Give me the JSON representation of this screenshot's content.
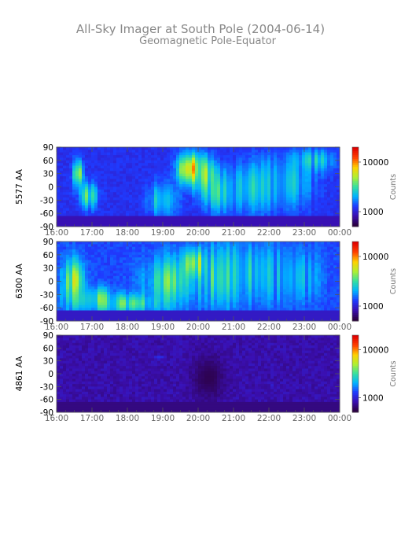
{
  "title": "All-Sky Imager at South Pole (2004-06-14)",
  "subtitle": "Geomagnetic Pole-Equator",
  "chart_data": [
    {
      "type": "heatmap",
      "panel": "5577",
      "ylabel": "5577 AA",
      "colorbar_label": "Counts",
      "colorbar_scale": "log",
      "colorbar_ticks": [
        1000,
        10000
      ],
      "colorbar_tick_labels": [
        "1000",
        "10000"
      ],
      "yticks": [
        90,
        60,
        30,
        0,
        -30,
        -60,
        -90
      ],
      "yticks_labels": [
        "90",
        "60",
        "30",
        "0",
        "-30",
        "-60",
        "-90"
      ],
      "ylim": [
        -90,
        90
      ],
      "xticks": [
        "16:00",
        "17:00",
        "18:00",
        "19:00",
        "20:00",
        "21:00",
        "22:00",
        "23:00",
        "00:00"
      ],
      "xlim": [
        "16:00",
        "00:00"
      ],
      "colormap": [
        "#2b003f",
        "#3a0fb0",
        "#1f3bff",
        "#00b3ff",
        "#35e0a0",
        "#b0f030",
        "#ffd000",
        "#ff4000",
        "#e00000"
      ],
      "background_level": 0.22,
      "features": [
        {
          "t": 16.6,
          "lat": 30,
          "width": 0.12,
          "height": 60,
          "level": 0.7
        },
        {
          "t": 16.9,
          "lat": -20,
          "width": 0.25,
          "height": 60,
          "level": 0.5
        },
        {
          "t": 19.0,
          "lat": -30,
          "width": 0.4,
          "height": 80,
          "level": 0.45
        },
        {
          "t": 19.8,
          "lat": 40,
          "width": 0.35,
          "height": 70,
          "level": 0.8
        },
        {
          "t": 20.2,
          "lat": 20,
          "width": 0.25,
          "height": 80,
          "level": 0.65
        },
        {
          "t": 20.6,
          "lat": -10,
          "width": 0.5,
          "height": 90,
          "level": 0.45
        },
        {
          "t": 21.5,
          "lat": 0,
          "width": 0.8,
          "height": 110,
          "level": 0.4
        },
        {
          "t": 22.5,
          "lat": 10,
          "width": 0.8,
          "height": 120,
          "level": 0.38
        },
        {
          "t": 23.3,
          "lat": 60,
          "width": 0.6,
          "height": 50,
          "level": 0.4
        }
      ]
    },
    {
      "type": "heatmap",
      "panel": "6300",
      "ylabel": "6300 AA",
      "colorbar_label": "Counts",
      "colorbar_scale": "log",
      "colorbar_ticks": [
        1000,
        10000
      ],
      "colorbar_tick_labels": [
        "1000",
        "10000"
      ],
      "yticks": [
        90,
        60,
        30,
        0,
        -30,
        -60,
        -90
      ],
      "yticks_labels": [
        "90",
        "60",
        "30",
        "0",
        "-30",
        "-60",
        "-90"
      ],
      "ylim": [
        -90,
        90
      ],
      "xticks": [
        "16:00",
        "17:00",
        "18:00",
        "19:00",
        "20:00",
        "21:00",
        "22:00",
        "23:00",
        "00:00"
      ],
      "xlim": [
        "16:00",
        "00:00"
      ],
      "colormap": [
        "#2b003f",
        "#3a0fb0",
        "#1f3bff",
        "#00b3ff",
        "#35e0a0",
        "#b0f030",
        "#ffd000",
        "#ff4000",
        "#e00000"
      ],
      "background_level": 0.26,
      "features": [
        {
          "t": 16.5,
          "lat": 0,
          "width": 0.3,
          "height": 100,
          "level": 0.62
        },
        {
          "t": 17.0,
          "lat": -40,
          "width": 0.6,
          "height": 50,
          "level": 0.52
        },
        {
          "t": 18.0,
          "lat": -50,
          "width": 0.9,
          "height": 40,
          "level": 0.48
        },
        {
          "t": 19.2,
          "lat": 0,
          "width": 0.7,
          "height": 110,
          "level": 0.5
        },
        {
          "t": 19.9,
          "lat": 40,
          "width": 0.3,
          "height": 60,
          "level": 0.65
        },
        {
          "t": 20.6,
          "lat": 10,
          "width": 0.6,
          "height": 130,
          "level": 0.48
        },
        {
          "t": 21.5,
          "lat": 20,
          "width": 0.8,
          "height": 120,
          "level": 0.42
        },
        {
          "t": 22.6,
          "lat": 10,
          "width": 0.9,
          "height": 120,
          "level": 0.38
        }
      ]
    },
    {
      "type": "heatmap",
      "panel": "4861",
      "ylabel": "4861 AA",
      "colorbar_label": "Counts",
      "colorbar_scale": "log",
      "colorbar_ticks": [
        1000,
        10000
      ],
      "colorbar_tick_labels": [
        "1000",
        "10000"
      ],
      "yticks": [
        90,
        60,
        30,
        0,
        -30,
        -60,
        -90
      ],
      "yticks_labels": [
        "90",
        "60",
        "30",
        "0",
        "-30",
        "-60",
        "-90"
      ],
      "ylim": [
        -90,
        90
      ],
      "xticks": [
        "16:00",
        "17:00",
        "18:00",
        "19:00",
        "20:00",
        "21:00",
        "22:00",
        "23:00",
        "00:00"
      ],
      "xlim": [
        "16:00",
        "00:00"
      ],
      "colormap": [
        "#2b003f",
        "#3a0fb0",
        "#1f3bff",
        "#00b3ff",
        "#35e0a0",
        "#b0f030",
        "#ffd000",
        "#ff4000",
        "#e00000"
      ],
      "background_level": 0.12,
      "features": [
        {
          "t": 20.3,
          "lat": -10,
          "width": 0.45,
          "height": 100,
          "level": 0.02
        },
        {
          "t": 18.9,
          "lat": 37,
          "width": 0.15,
          "height": 6,
          "level": 0.22
        },
        {
          "t": 22.1,
          "lat": -30,
          "width": 0.1,
          "height": 6,
          "level": 0.2
        }
      ]
    }
  ]
}
